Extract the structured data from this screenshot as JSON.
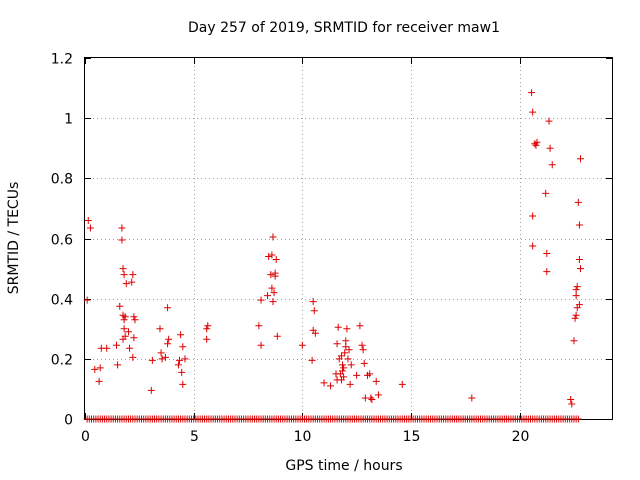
{
  "chart_data": {
    "type": "scatter",
    "title": "Day 257 of 2019, SRMTID for receiver maw1",
    "xlabel": "GPS time / hours",
    "ylabel": "SRMTID / TECUs",
    "xlim": [
      0,
      24.25
    ],
    "ylim": [
      0,
      1.2
    ],
    "xticks": [
      0,
      5,
      10,
      15,
      20
    ],
    "yticks": [
      0,
      0.2,
      0.4,
      0.6,
      0.8,
      1,
      1.2
    ],
    "xtick_labels": [
      "0",
      "5",
      "10",
      "15",
      "20"
    ],
    "ytick_labels": [
      "0",
      "0.2",
      "0.4",
      "0.6",
      "0.8",
      "1",
      "1.2"
    ],
    "grid": true,
    "legend": "none",
    "marker": "plus",
    "color": "#dd0000",
    "zero_baseline": {
      "start": 0.1,
      "end": 22.7,
      "step": 0.1,
      "value": 0
    },
    "points": [
      [
        0.15,
        0.66
      ],
      [
        0.25,
        0.635
      ],
      [
        0.1,
        0.395
      ],
      [
        0.45,
        0.165
      ],
      [
        0.7,
        0.17
      ],
      [
        0.75,
        0.235
      ],
      [
        0.65,
        0.125
      ],
      [
        1.0,
        0.235
      ],
      [
        1.45,
        0.245
      ],
      [
        1.5,
        0.18
      ],
      [
        1.6,
        0.375
      ],
      [
        1.7,
        0.635
      ],
      [
        1.7,
        0.595
      ],
      [
        1.75,
        0.5
      ],
      [
        1.8,
        0.48
      ],
      [
        1.75,
        0.345
      ],
      [
        1.8,
        0.33
      ],
      [
        1.85,
        0.34
      ],
      [
        1.8,
        0.3
      ],
      [
        1.85,
        0.275
      ],
      [
        1.75,
        0.265
      ],
      [
        1.9,
        0.45
      ],
      [
        2.0,
        0.29
      ],
      [
        2.05,
        0.235
      ],
      [
        2.15,
        0.455
      ],
      [
        2.2,
        0.48
      ],
      [
        2.25,
        0.34
      ],
      [
        2.3,
        0.33
      ],
      [
        2.25,
        0.27
      ],
      [
        2.2,
        0.205
      ],
      [
        3.05,
        0.095
      ],
      [
        3.1,
        0.195
      ],
      [
        3.45,
        0.3
      ],
      [
        3.5,
        0.22
      ],
      [
        3.55,
        0.2
      ],
      [
        3.7,
        0.205
      ],
      [
        3.8,
        0.37
      ],
      [
        3.85,
        0.265
      ],
      [
        3.8,
        0.25
      ],
      [
        4.3,
        0.18
      ],
      [
        4.35,
        0.195
      ],
      [
        4.4,
        0.28
      ],
      [
        4.45,
        0.155
      ],
      [
        4.5,
        0.115
      ],
      [
        4.5,
        0.24
      ],
      [
        4.6,
        0.2
      ],
      [
        5.6,
        0.3
      ],
      [
        5.65,
        0.31
      ],
      [
        5.6,
        0.265
      ],
      [
        8.0,
        0.31
      ],
      [
        8.1,
        0.245
      ],
      [
        8.1,
        0.395
      ],
      [
        8.4,
        0.41
      ],
      [
        8.45,
        0.54
      ],
      [
        8.55,
        0.48
      ],
      [
        8.6,
        0.545
      ],
      [
        8.65,
        0.605
      ],
      [
        8.6,
        0.435
      ],
      [
        8.65,
        0.39
      ],
      [
        8.7,
        0.42
      ],
      [
        8.75,
        0.485
      ],
      [
        8.75,
        0.475
      ],
      [
        8.8,
        0.53
      ],
      [
        8.85,
        0.275
      ],
      [
        10.0,
        0.245
      ],
      [
        10.45,
        0.195
      ],
      [
        10.5,
        0.39
      ],
      [
        10.55,
        0.36
      ],
      [
        10.5,
        0.295
      ],
      [
        10.6,
        0.285
      ],
      [
        11.0,
        0.12
      ],
      [
        11.3,
        0.11
      ],
      [
        11.6,
        0.13
      ],
      [
        11.55,
        0.15
      ],
      [
        11.6,
        0.25
      ],
      [
        11.65,
        0.305
      ],
      [
        11.7,
        0.2
      ],
      [
        11.75,
        0.15
      ],
      [
        11.8,
        0.13
      ],
      [
        11.8,
        0.21
      ],
      [
        11.85,
        0.18
      ],
      [
        11.85,
        0.16
      ],
      [
        11.9,
        0.17
      ],
      [
        11.9,
        0.14
      ],
      [
        11.95,
        0.22
      ],
      [
        12.0,
        0.26
      ],
      [
        12.0,
        0.24
      ],
      [
        12.05,
        0.3
      ],
      [
        12.1,
        0.2
      ],
      [
        12.15,
        0.23
      ],
      [
        12.2,
        0.115
      ],
      [
        12.25,
        0.18
      ],
      [
        12.5,
        0.145
      ],
      [
        12.65,
        0.31
      ],
      [
        12.75,
        0.245
      ],
      [
        12.8,
        0.23
      ],
      [
        12.85,
        0.185
      ],
      [
        12.9,
        0.07
      ],
      [
        13.0,
        0.145
      ],
      [
        13.1,
        0.15
      ],
      [
        13.15,
        0.07
      ],
      [
        13.2,
        0.065
      ],
      [
        13.4,
        0.125
      ],
      [
        13.5,
        0.08
      ],
      [
        14.6,
        0.115
      ],
      [
        17.8,
        0.07
      ],
      [
        20.55,
        1.085
      ],
      [
        20.6,
        1.02
      ],
      [
        20.6,
        0.675
      ],
      [
        20.6,
        0.575
      ],
      [
        20.7,
        0.915
      ],
      [
        20.75,
        0.91
      ],
      [
        20.8,
        0.92
      ],
      [
        21.2,
        0.75
      ],
      [
        21.25,
        0.55
      ],
      [
        21.25,
        0.49
      ],
      [
        21.35,
        0.99
      ],
      [
        21.4,
        0.9
      ],
      [
        21.5,
        0.845
      ],
      [
        22.35,
        0.065
      ],
      [
        22.4,
        0.05
      ],
      [
        22.5,
        0.26
      ],
      [
        22.55,
        0.335
      ],
      [
        22.6,
        0.345
      ],
      [
        22.6,
        0.43
      ],
      [
        22.65,
        0.44
      ],
      [
        22.6,
        0.41
      ],
      [
        22.65,
        0.37
      ],
      [
        22.7,
        0.72
      ],
      [
        22.75,
        0.53
      ],
      [
        22.75,
        0.645
      ],
      [
        22.8,
        0.5
      ],
      [
        22.8,
        0.865
      ],
      [
        22.75,
        0.38
      ]
    ]
  }
}
